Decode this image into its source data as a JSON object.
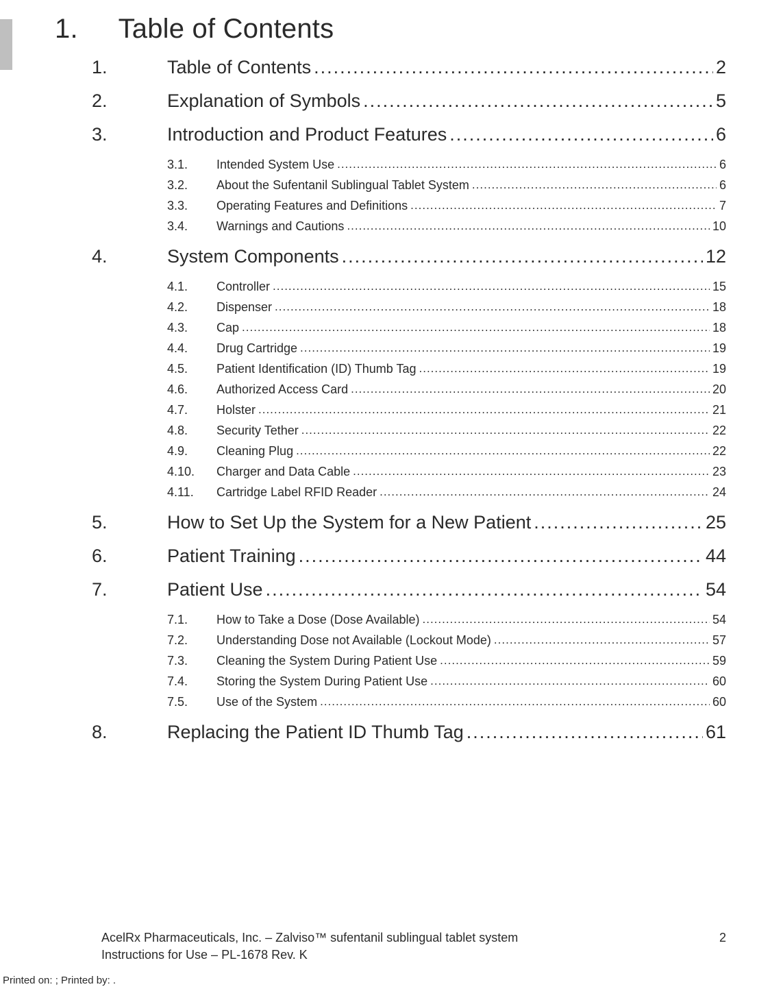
{
  "heading": {
    "number": "1.",
    "title": "Table of Contents"
  },
  "toc": [
    {
      "type": "major",
      "num": "1.",
      "label": "Table of Contents",
      "page": "2"
    },
    {
      "type": "major",
      "num": "2.",
      "label": "Explanation of Symbols",
      "page": "5"
    },
    {
      "type": "major",
      "num": "3.",
      "label": "Introduction and Product Features",
      "page": "6"
    },
    {
      "type": "minor",
      "num": "3.1.",
      "label": "Intended System Use",
      "page": "6"
    },
    {
      "type": "minor",
      "num": "3.2.",
      "label": "About the Sufentanil Sublingual Tablet System",
      "page": "6"
    },
    {
      "type": "minor",
      "num": "3.3.",
      "label": "Operating Features and Definitions",
      "page": "7"
    },
    {
      "type": "minor",
      "num": "3.4.",
      "label": "Warnings and Cautions",
      "page": "10"
    },
    {
      "type": "major",
      "num": "4.",
      "label": "System Components",
      "page": "12"
    },
    {
      "type": "minor",
      "num": "4.1.",
      "label": "Controller",
      "page": "15"
    },
    {
      "type": "minor",
      "num": "4.2.",
      "label": "Dispenser",
      "page": "18"
    },
    {
      "type": "minor",
      "num": "4.3.",
      "label": "Cap",
      "page": "18"
    },
    {
      "type": "minor",
      "num": "4.4.",
      "label": "Drug Cartridge",
      "page": "19"
    },
    {
      "type": "minor",
      "num": "4.5.",
      "label": "Patient Identification (ID) Thumb Tag",
      "page": "19"
    },
    {
      "type": "minor",
      "num": "4.6.",
      "label": "Authorized Access Card",
      "page": "20"
    },
    {
      "type": "minor",
      "num": "4.7.",
      "label": "Holster",
      "page": "21"
    },
    {
      "type": "minor",
      "num": "4.8.",
      "label": "Security Tether",
      "page": "22"
    },
    {
      "type": "minor",
      "num": "4.9.",
      "label": "Cleaning Plug",
      "page": "22"
    },
    {
      "type": "minor",
      "num": "4.10.",
      "label": "Charger and Data Cable",
      "page": "23"
    },
    {
      "type": "minor",
      "num": "4.11.",
      "label": "Cartridge Label RFID Reader",
      "page": "24"
    },
    {
      "type": "major",
      "num": "5.",
      "label": "How to Set Up the System for a New Patient",
      "page": "25"
    },
    {
      "type": "major",
      "num": "6.",
      "label": "Patient Training",
      "page": "44"
    },
    {
      "type": "major",
      "num": "7.",
      "label": "Patient Use",
      "page": "54"
    },
    {
      "type": "minor",
      "num": "7.1.",
      "label": "How to Take a Dose (Dose Available)",
      "page": "54"
    },
    {
      "type": "minor",
      "num": "7.2.",
      "label": "Understanding Dose not Available (Lockout Mode)",
      "page": "57"
    },
    {
      "type": "minor",
      "num": "7.3.",
      "label": "Cleaning the System During Patient Use",
      "page": "59"
    },
    {
      "type": "minor",
      "num": "7.4.",
      "label": "Storing the System During Patient Use",
      "page": "60"
    },
    {
      "type": "minor",
      "num": "7.5.",
      "label": "Use of the System",
      "page": "60"
    },
    {
      "type": "major",
      "num": "8.",
      "label": "Replacing the Patient ID Thumb Tag",
      "page": "61"
    }
  ],
  "footer": {
    "line1": "AcelRx Pharmaceuticals, Inc. – Zalviso™ sufentanil sublingual tablet system",
    "line2": "Instructions for Use – PL-1678 Rev. K",
    "pageNumber": "2"
  },
  "printed": "Printed on: ; Printed by: ."
}
